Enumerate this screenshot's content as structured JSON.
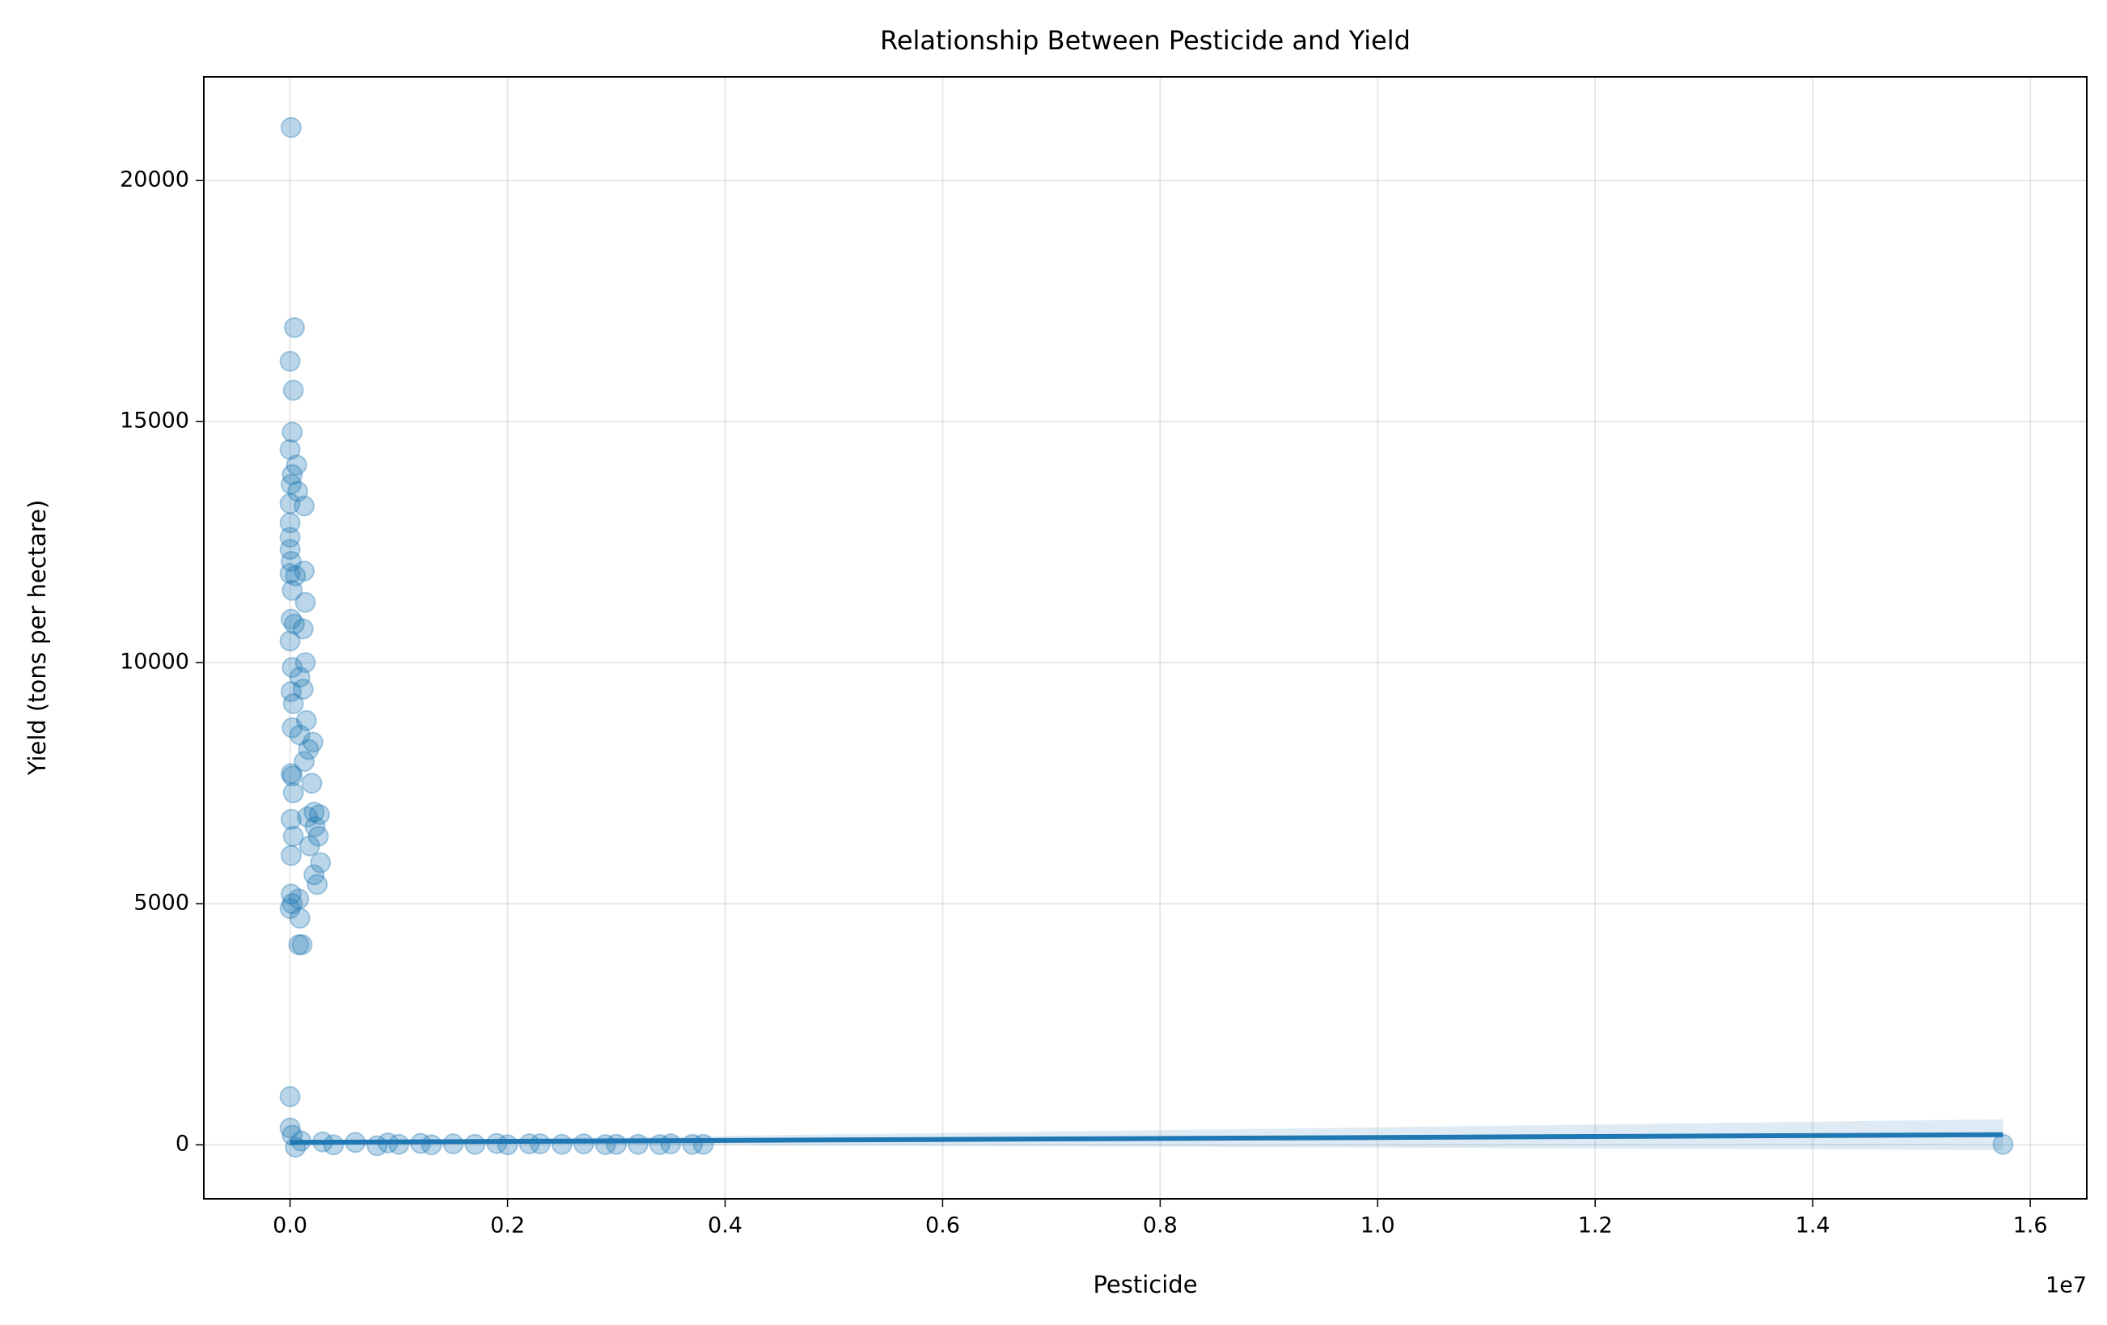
{
  "chart_data": {
    "type": "scatter",
    "title": "Relationship Between Pesticide and Yield",
    "xlabel": "Pesticide",
    "ylabel": "Yield (tons per hectare)",
    "x_offset_label": "1e7",
    "color": "#1f77b4",
    "grid": true,
    "xlim": [
      -793000,
      16520000
    ],
    "ylim": [
      -1120,
      22150
    ],
    "xticks": [
      {
        "value": 0,
        "label": "0.0"
      },
      {
        "value": 2000000,
        "label": "0.2"
      },
      {
        "value": 4000000,
        "label": "0.4"
      },
      {
        "value": 6000000,
        "label": "0.6"
      },
      {
        "value": 8000000,
        "label": "0.8"
      },
      {
        "value": 10000000,
        "label": "1.0"
      },
      {
        "value": 12000000,
        "label": "1.2"
      },
      {
        "value": 14000000,
        "label": "1.4"
      },
      {
        "value": 16000000,
        "label": "1.6"
      }
    ],
    "yticks": [
      0,
      5000,
      10000,
      15000,
      20000
    ],
    "x": [
      10000,
      40000,
      0,
      30000,
      20000,
      0,
      60000,
      20000,
      10000,
      70000,
      130000,
      0,
      0,
      0,
      0,
      10000,
      0,
      50000,
      130000,
      20000,
      140000,
      10000,
      120000,
      40000,
      0,
      140000,
      20000,
      90000,
      120000,
      10000,
      30000,
      150000,
      210000,
      20000,
      90000,
      170000,
      130000,
      10000,
      20000,
      200000,
      30000,
      220000,
      160000,
      270000,
      10000,
      230000,
      260000,
      30000,
      180000,
      10000,
      280000,
      220000,
      250000,
      10000,
      20000,
      80000,
      0,
      90000,
      80000,
      110000,
      0,
      0,
      20000,
      100000,
      300000,
      600000,
      900000,
      1200000,
      1500000,
      1900000,
      2200000,
      2500000,
      2700000,
      3000000,
      3200000,
      3500000,
      3700000,
      3800000,
      15750000,
      50000,
      400000,
      800000,
      1000000,
      1300000,
      1700000,
      2000000,
      2300000,
      2900000,
      3400000
    ],
    "y": [
      21100,
      16950,
      16250,
      15650,
      14780,
      14420,
      14100,
      13900,
      13700,
      13550,
      13250,
      13300,
      12900,
      12600,
      12350,
      12100,
      11850,
      11800,
      11900,
      11500,
      11250,
      10900,
      10700,
      10800,
      10450,
      10000,
      9900,
      9700,
      9450,
      9400,
      9150,
      8800,
      8350,
      8650,
      8500,
      8200,
      7950,
      7700,
      7650,
      7500,
      7300,
      6900,
      6800,
      6850,
      6750,
      6600,
      6400,
      6400,
      6200,
      6000,
      5850,
      5600,
      5400,
      5200,
      5000,
      5100,
      4900,
      4700,
      4150,
      4150,
      1000,
      350,
      200,
      80,
      60,
      50,
      40,
      30,
      20,
      30,
      20,
      10,
      20,
      10,
      10,
      20,
      10,
      10,
      10,
      -50,
      0,
      -20,
      10,
      0,
      10,
      0,
      20,
      5,
      5
    ],
    "fit": {
      "x": [
        0,
        15750000
      ],
      "y": [
        50,
        210
      ],
      "ci_upper": [
        70,
        530
      ],
      "ci_lower": [
        30,
        -110
      ]
    }
  }
}
